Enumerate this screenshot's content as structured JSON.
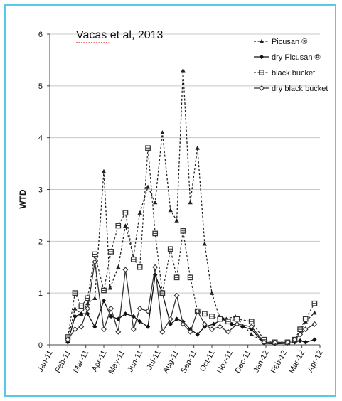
{
  "chart_data": {
    "type": "line",
    "title": "",
    "annotation": "Vacas et al, 2013",
    "xlabel": "",
    "ylabel": "WTD",
    "ylim": [
      0,
      6
    ],
    "yticks": [
      "0",
      "1",
      "2",
      "3",
      "4",
      "5",
      "6"
    ],
    "xticks": [
      "Jan-11",
      "Feb-11",
      "Mar-11",
      "Apr-11",
      "May-11",
      "Jun-11",
      "Jul-11",
      "Aug-11",
      "Sep-11",
      "Oct-11",
      "Nov-11",
      "Dec-11",
      "Jan-12",
      "Feb-12",
      "Mar-12",
      "Apr-12"
    ],
    "x_units": "months since Jan-11",
    "grid": "horizontal",
    "legend_position": "top-right",
    "series": [
      {
        "name": "Picusan ®",
        "style": "dashed",
        "marker": "triangle",
        "color": "#222222",
        "x": [
          1.0,
          1.4,
          1.75,
          2.1,
          2.5,
          3.0,
          3.35,
          3.8,
          4.2,
          4.65,
          5.0,
          5.45,
          5.85,
          6.25,
          6.7,
          7.05,
          7.4,
          7.8,
          8.2,
          8.6,
          9.0,
          9.4,
          9.8,
          10.3,
          11.2,
          11.9,
          12.5,
          13.2,
          13.6,
          13.9,
          14.2,
          14.7
        ],
        "values": [
          0.1,
          0.7,
          0.6,
          0.8,
          0.9,
          3.35,
          1.1,
          1.5,
          2.3,
          1.7,
          2.55,
          3.05,
          2.75,
          4.1,
          2.6,
          2.4,
          5.3,
          2.75,
          3.8,
          1.95,
          1.0,
          0.55,
          0.5,
          0.55,
          0.2,
          0.05,
          0.03,
          0.05,
          0.1,
          0.25,
          0.45,
          0.62
        ]
      },
      {
        "name": "dry Picusan ®",
        "style": "solid",
        "marker": "diamond",
        "color": "#111111",
        "x": [
          1.0,
          1.4,
          1.75,
          2.1,
          2.5,
          3.0,
          3.4,
          3.8,
          4.2,
          4.65,
          5.0,
          5.45,
          5.85,
          6.25,
          6.7,
          7.05,
          7.4,
          7.8,
          8.2,
          8.6,
          9.1,
          9.6,
          10.1,
          10.7,
          11.2,
          11.9,
          12.5,
          13.2,
          13.6,
          13.9,
          14.2,
          14.7
        ],
        "values": [
          0.05,
          0.55,
          0.6,
          0.6,
          0.35,
          0.85,
          0.55,
          0.5,
          0.6,
          0.55,
          0.45,
          0.35,
          1.35,
          1.0,
          0.4,
          0.5,
          0.45,
          0.3,
          0.2,
          0.35,
          0.4,
          0.5,
          0.4,
          0.35,
          0.3,
          0.03,
          0.02,
          0.03,
          0.05,
          0.08,
          0.05,
          0.1
        ]
      },
      {
        "name": "black bucket",
        "style": "dashed",
        "marker": "square",
        "color": "#333333",
        "x": [
          1.0,
          1.4,
          1.75,
          2.1,
          2.5,
          3.0,
          3.4,
          3.8,
          4.2,
          4.65,
          5.0,
          5.45,
          5.85,
          6.25,
          6.7,
          7.05,
          7.4,
          7.8,
          8.2,
          8.6,
          9.0,
          9.45,
          9.9,
          10.4,
          11.2,
          11.9,
          12.5,
          13.2,
          13.6,
          13.9,
          14.2,
          14.7
        ],
        "values": [
          0.15,
          1.0,
          0.75,
          0.9,
          1.75,
          1.05,
          1.8,
          2.3,
          2.55,
          1.65,
          1.5,
          3.8,
          2.15,
          1.0,
          1.85,
          1.3,
          2.2,
          1.3,
          0.65,
          0.6,
          0.55,
          0.5,
          0.45,
          0.5,
          0.45,
          0.1,
          0.05,
          0.05,
          0.1,
          0.3,
          0.5,
          0.8
        ]
      },
      {
        "name": "dry black bucket",
        "style": "solid",
        "marker": "open-diamond",
        "color": "#333333",
        "x": [
          1.0,
          1.4,
          1.75,
          2.1,
          2.5,
          3.0,
          3.4,
          3.8,
          4.2,
          4.65,
          5.0,
          5.45,
          5.85,
          6.25,
          6.7,
          7.05,
          7.4,
          7.8,
          8.2,
          8.6,
          9.0,
          9.45,
          9.9,
          10.4,
          11.2,
          11.9,
          12.5,
          13.2,
          13.6,
          13.9,
          14.2,
          14.7
        ],
        "values": [
          0.1,
          0.3,
          0.35,
          0.7,
          1.6,
          0.3,
          0.7,
          0.25,
          1.45,
          0.3,
          0.7,
          0.65,
          1.5,
          0.25,
          0.5,
          0.95,
          0.4,
          0.25,
          0.65,
          0.4,
          0.3,
          0.35,
          0.25,
          0.4,
          0.35,
          0.05,
          0.05,
          0.05,
          0.1,
          0.2,
          0.3,
          0.4
        ]
      }
    ]
  }
}
